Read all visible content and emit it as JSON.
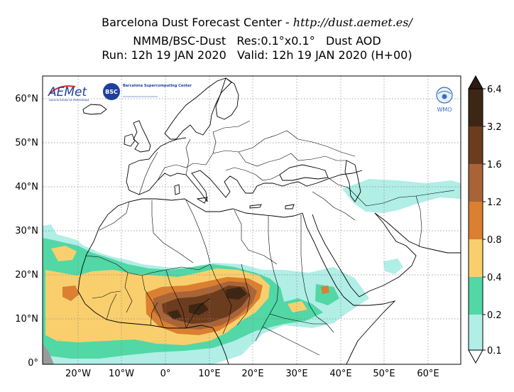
{
  "title": {
    "line1_prefix": "Barcelona Dust Forecast Center - ",
    "line1_url": "http://dust.aemet.es/",
    "line2": "NMMB/BSC-Dust   Res:0.1°x0.1°   Dust AOD",
    "line3": "Run: 12h 19 JAN 2020   Valid: 12h 19 JAN 2020 (H+00)"
  },
  "logos": {
    "aemet_text": "AEMet",
    "aemet_sub": "Agencia Estatal de Meteorología",
    "bsc_badge": "BSC",
    "bsc_text": "Barcelona Supercomputing Center",
    "wmo_text": "WMO"
  },
  "axes": {
    "lat_labels": [
      "60°N",
      "50°N",
      "40°N",
      "30°N",
      "20°N",
      "10°N",
      "0°"
    ],
    "lon_labels": [
      "20°W",
      "10°W",
      "0°",
      "10°E",
      "20°E",
      "30°E",
      "40°E",
      "50°E",
      "60°E"
    ]
  },
  "colorbar": {
    "tick_labels": [
      "6.4",
      "3.2",
      "1.6",
      "1.2",
      "0.8",
      "0.4",
      "0.2",
      "0.1"
    ],
    "colors": [
      "#b0eee6",
      "#52d7a6",
      "#f9cf6d",
      "#db7f30",
      "#a86437",
      "#6c3c1e",
      "#3d2614",
      "#2c1c10"
    ]
  },
  "colors": {
    "aod_0_1": "#b0eee6",
    "aod_0_2": "#52d7a6",
    "aod_0_4": "#f9cf6d",
    "aod_0_8": "#db7f30",
    "aod_1_2": "#a86437",
    "aod_1_6": "#6c3c1e",
    "aod_3_2": "#3d2614",
    "aod_6_4": "#2c1c10"
  }
}
